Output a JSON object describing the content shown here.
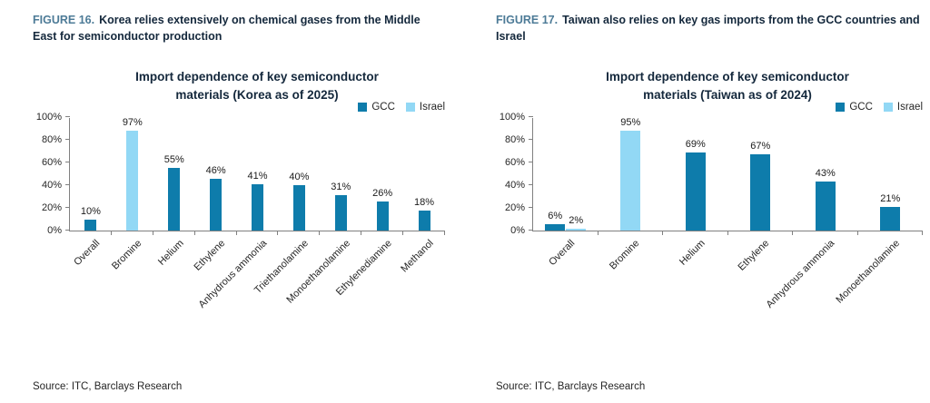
{
  "colors": {
    "GCC": "#0e7cab",
    "Israel": "#92d8f5"
  },
  "figures": [
    {
      "caption_prefix": "FIGURE 16.",
      "caption_text": "Korea relies extensively on chemical gases from the Middle East for semiconductor production",
      "source": "Source: ITC, Barclays Research"
    },
    {
      "caption_prefix": "FIGURE 17.",
      "caption_text": "Taiwan also relies on key gas imports from the GCC countries and Israel",
      "source": "Source: ITC, Barclays Research"
    }
  ],
  "chart_data": [
    {
      "type": "bar",
      "title": "Import dependence of key semiconductor materials (Korea as of 2025)",
      "xlabel": "",
      "ylabel": "",
      "ylim": [
        0,
        100
      ],
      "ytick_step": 20,
      "ytick_format": "percent",
      "grid": false,
      "legend": [
        "GCC",
        "Israel"
      ],
      "legend_position": "top-right",
      "categories": [
        "Overall",
        "Bromine",
        "Helium",
        "Ethylene",
        "Anhydrous ammonia",
        "Triethanolamine",
        "Monoethanolamine",
        "Ethylenediamine",
        "Methanol"
      ],
      "points": [
        {
          "category": "Overall",
          "series": "GCC",
          "value": 10
        },
        {
          "category": "Bromine",
          "series": "Israel",
          "value": 97
        },
        {
          "category": "Helium",
          "series": "GCC",
          "value": 55
        },
        {
          "category": "Ethylene",
          "series": "GCC",
          "value": 46
        },
        {
          "category": "Anhydrous ammonia",
          "series": "GCC",
          "value": 41
        },
        {
          "category": "Triethanolamine",
          "series": "GCC",
          "value": 40
        },
        {
          "category": "Monoethanolamine",
          "series": "GCC",
          "value": 31
        },
        {
          "category": "Ethylenediamine",
          "series": "GCC",
          "value": 26
        },
        {
          "category": "Methanol",
          "series": "GCC",
          "value": 18
        }
      ]
    },
    {
      "type": "bar",
      "title": "Import dependence of key semiconductor materials (Taiwan as of 2024)",
      "xlabel": "",
      "ylabel": "",
      "ylim": [
        0,
        100
      ],
      "ytick_step": 20,
      "ytick_format": "percent",
      "grid": false,
      "legend": [
        "GCC",
        "Israel"
      ],
      "legend_position": "top-right",
      "categories": [
        "Overall",
        "Bromine",
        "Helium",
        "Ethylene",
        "Anhydrous ammonia",
        "Monoethanolamine"
      ],
      "points": [
        {
          "category": "Overall",
          "series": "GCC",
          "value": 6
        },
        {
          "category": "Overall",
          "series": "Israel",
          "value": 2
        },
        {
          "category": "Bromine",
          "series": "Israel",
          "value": 95
        },
        {
          "category": "Helium",
          "series": "GCC",
          "value": 69
        },
        {
          "category": "Ethylene",
          "series": "GCC",
          "value": 67
        },
        {
          "category": "Anhydrous ammonia",
          "series": "GCC",
          "value": 43
        },
        {
          "category": "Monoethanolamine",
          "series": "GCC",
          "value": 21
        }
      ]
    }
  ]
}
